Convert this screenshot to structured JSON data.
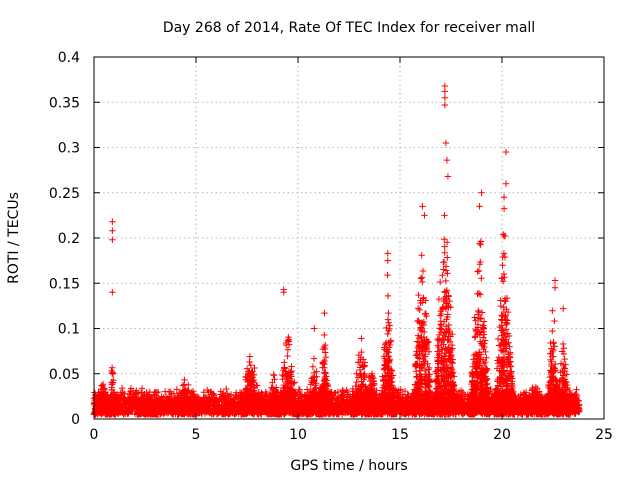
{
  "chart_data": {
    "type": "scatter",
    "title": "Day 268 of 2014, Rate Of TEC Index for receiver mall",
    "xlabel": "GPS time / hours",
    "ylabel": "ROTI / TECUs",
    "xlim": [
      0,
      25
    ],
    "ylim": [
      0,
      0.4
    ],
    "xticks": [
      0,
      5,
      10,
      15,
      20,
      25
    ],
    "yticks": [
      0,
      0.05,
      0.1,
      0.15,
      0.2,
      0.25,
      0.3,
      0.35,
      0.4
    ],
    "xtick_labels": [
      "0",
      "5",
      "10",
      "15",
      "20",
      "25"
    ],
    "ytick_labels": [
      "0",
      "0.05",
      "0.1",
      "0.15",
      "0.2",
      "0.25",
      "0.3",
      "0.35",
      "0.4"
    ],
    "grid": true,
    "marker": "+",
    "series_color": "#ff0000",
    "baseline": {
      "x_start": 0,
      "x_end": 23.8,
      "low": 0.005,
      "high": 0.035,
      "step_hours": 0.006
    },
    "bursts": [
      {
        "center": 0.4,
        "width": 0.4,
        "peak": 0.055
      },
      {
        "center": 0.9,
        "width": 0.15,
        "peak": 0.08
      },
      {
        "center": 2.6,
        "width": 0.5,
        "peak": 0.04
      },
      {
        "center": 4.5,
        "width": 0.4,
        "peak": 0.06
      },
      {
        "center": 7.7,
        "width": 0.5,
        "peak": 0.1
      },
      {
        "center": 8.8,
        "width": 0.3,
        "peak": 0.07
      },
      {
        "center": 9.5,
        "width": 0.5,
        "peak": 0.12
      },
      {
        "center": 10.8,
        "width": 0.4,
        "peak": 0.075
      },
      {
        "center": 11.3,
        "width": 0.25,
        "peak": 0.115
      },
      {
        "center": 13.1,
        "width": 0.4,
        "peak": 0.12
      },
      {
        "center": 13.6,
        "width": 0.3,
        "peak": 0.08
      },
      {
        "center": 14.4,
        "width": 0.35,
        "peak": 0.18
      },
      {
        "center": 16.1,
        "width": 0.5,
        "peak": 0.23
      },
      {
        "center": 17.2,
        "width": 0.55,
        "peak": 0.3
      },
      {
        "center": 18.9,
        "width": 0.5,
        "peak": 0.24
      },
      {
        "center": 20.1,
        "width": 0.5,
        "peak": 0.25
      },
      {
        "center": 21.6,
        "width": 0.4,
        "peak": 0.05
      },
      {
        "center": 22.5,
        "width": 0.3,
        "peak": 0.15
      },
      {
        "center": 23.0,
        "width": 0.3,
        "peak": 0.12
      }
    ],
    "outliers": [
      {
        "x": 0.9,
        "y": 0.218
      },
      {
        "x": 0.9,
        "y": 0.208
      },
      {
        "x": 0.9,
        "y": 0.198
      },
      {
        "x": 0.9,
        "y": 0.14
      },
      {
        "x": 9.3,
        "y": 0.143
      },
      {
        "x": 9.3,
        "y": 0.14
      },
      {
        "x": 11.3,
        "y": 0.117
      },
      {
        "x": 10.8,
        "y": 0.1
      },
      {
        "x": 14.4,
        "y": 0.183
      },
      {
        "x": 14.4,
        "y": 0.175
      },
      {
        "x": 17.2,
        "y": 0.368
      },
      {
        "x": 17.2,
        "y": 0.362
      },
      {
        "x": 17.2,
        "y": 0.355
      },
      {
        "x": 17.2,
        "y": 0.347
      },
      {
        "x": 17.25,
        "y": 0.305
      },
      {
        "x": 17.3,
        "y": 0.286
      },
      {
        "x": 17.35,
        "y": 0.268
      },
      {
        "x": 16.1,
        "y": 0.235
      },
      {
        "x": 16.2,
        "y": 0.225
      },
      {
        "x": 19.0,
        "y": 0.25
      },
      {
        "x": 18.9,
        "y": 0.235
      },
      {
        "x": 20.2,
        "y": 0.295
      },
      {
        "x": 20.2,
        "y": 0.26
      },
      {
        "x": 20.1,
        "y": 0.245
      },
      {
        "x": 22.6,
        "y": 0.153
      },
      {
        "x": 22.6,
        "y": 0.145
      },
      {
        "x": 23.0,
        "y": 0.122
      }
    ]
  }
}
